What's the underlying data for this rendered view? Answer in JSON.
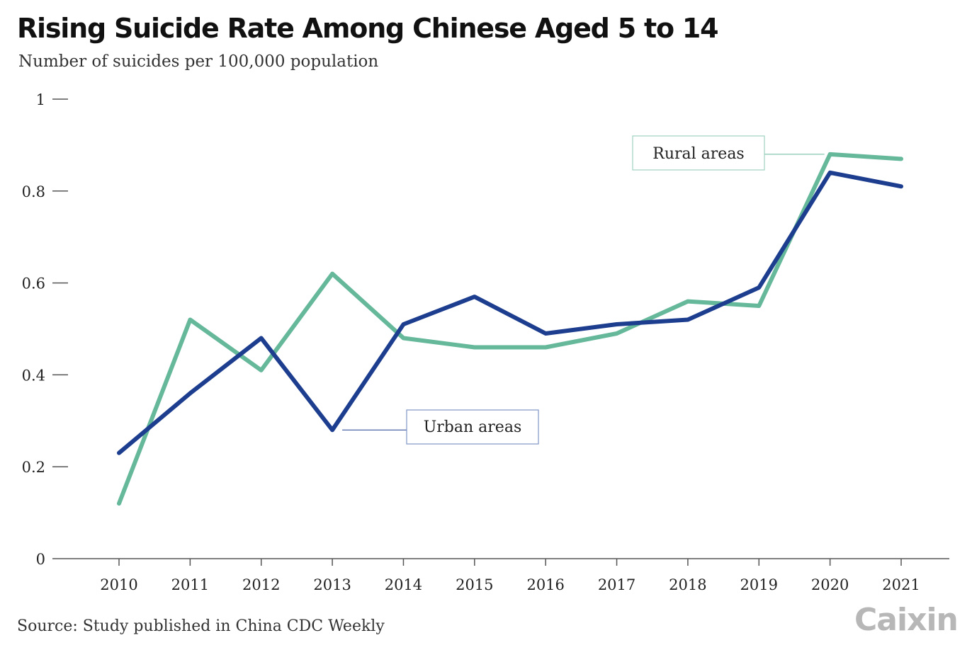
{
  "title": "Rising Suicide Rate Among Chinese Aged 5 to 14",
  "subtitle": "Number of suicides per 100,000 population",
  "source": "Source: Study published in China CDC Weekly",
  "logo": "Caixin",
  "colors": {
    "urban": "#1d3d8f",
    "rural": "#66b89b",
    "axis": "#555555",
    "text": "#222222"
  },
  "chart_data": {
    "type": "line",
    "title": "Rising Suicide Rate Among Chinese Aged 5 to 14",
    "ylabel": "Number of suicides per 100,000 population",
    "xlabel": "",
    "ylim": [
      0,
      1
    ],
    "yticks": [
      0,
      0.2,
      0.4,
      0.6,
      0.8,
      1
    ],
    "ytick_labels": [
      "0",
      "0.2",
      "0.4",
      "0.6",
      "0.8",
      "1"
    ],
    "x": [
      "2010",
      "2011",
      "2012",
      "2013",
      "2014",
      "2015",
      "2016",
      "2017",
      "2018",
      "2019",
      "2020",
      "2021"
    ],
    "grid": false,
    "series": [
      {
        "name": "Urban areas",
        "values": [
          0.23,
          0.36,
          0.48,
          0.28,
          0.51,
          0.57,
          0.49,
          0.51,
          0.52,
          0.59,
          0.84,
          0.81
        ]
      },
      {
        "name": "Rural areas",
        "values": [
          0.12,
          0.52,
          0.41,
          0.62,
          0.48,
          0.46,
          0.46,
          0.49,
          0.56,
          0.55,
          0.88,
          0.87
        ]
      }
    ]
  }
}
